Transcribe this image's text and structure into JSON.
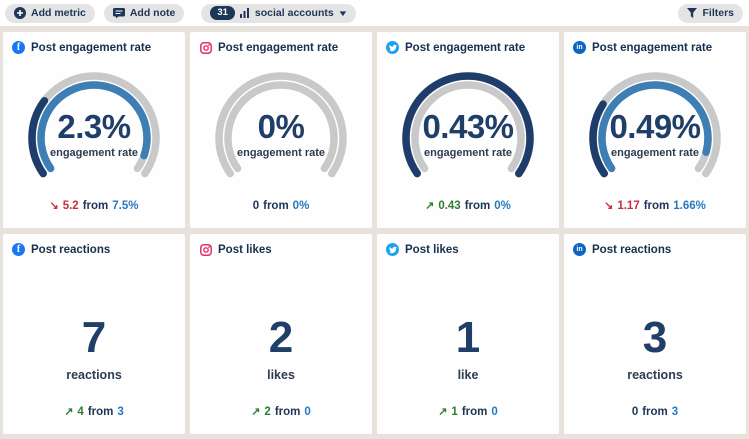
{
  "colors": {
    "track": "#c9c9c9",
    "arc_current": "#1e3d6b",
    "arc_previous": "#3d7eb5",
    "facebook": "#1877f2",
    "instagram": "#e1306c",
    "twitter": "#1da1f2",
    "linkedin": "#0a66c2",
    "positive": "#2e7d32",
    "negative": "#c5303a",
    "comparison_blue": "#2679c0"
  },
  "toolbar": {
    "add_metric": "Add metric",
    "add_note": "Add note",
    "accounts_count": "31",
    "accounts_label": "social accounts",
    "filters": "Filters"
  },
  "cards": [
    {
      "platform": "facebook",
      "title": "Post engagement rate",
      "type": "gauge",
      "value": "2.3%",
      "value_label": "engagement rate",
      "gauge": {
        "current": 2.3,
        "previous": 7.5,
        "max": 8
      },
      "delta": {
        "trend": "down",
        "glyph": "↘",
        "change": "5.2",
        "from_word": "from",
        "from": "7.5%"
      }
    },
    {
      "platform": "instagram",
      "title": "Post engagement rate",
      "type": "gauge",
      "value": "0%",
      "value_label": "engagement rate",
      "gauge": {
        "current": 0,
        "previous": 0,
        "max": 1
      },
      "delta": {
        "trend": "none",
        "glyph": "",
        "change": "0",
        "from_word": "from",
        "from": "0%"
      }
    },
    {
      "platform": "twitter",
      "title": "Post engagement rate",
      "type": "gauge",
      "value": "0.43%",
      "value_label": "engagement rate",
      "gauge": {
        "current": 0.43,
        "previous": 0,
        "max": 0.43
      },
      "delta": {
        "trend": "up",
        "glyph": "↗",
        "change": "0.43",
        "from_word": "from",
        "from": "0%"
      }
    },
    {
      "platform": "linkedin",
      "title": "Post engagement rate",
      "type": "gauge",
      "value": "0.49%",
      "value_label": "engagement rate",
      "gauge": {
        "current": 0.49,
        "previous": 1.66,
        "max": 1.8
      },
      "delta": {
        "trend": "down",
        "glyph": "↘",
        "change": "1.17",
        "from_word": "from",
        "from": "1.66%"
      }
    },
    {
      "platform": "facebook",
      "title": "Post reactions",
      "type": "number",
      "value": "7",
      "value_label": "reactions",
      "delta": {
        "trend": "up",
        "glyph": "↗",
        "change": "4",
        "from_word": "from",
        "from": "3"
      }
    },
    {
      "platform": "instagram",
      "title": "Post likes",
      "type": "number",
      "value": "2",
      "value_label": "likes",
      "delta": {
        "trend": "up",
        "glyph": "↗",
        "change": "2",
        "from_word": "from",
        "from": "0"
      }
    },
    {
      "platform": "twitter",
      "title": "Post likes",
      "type": "number",
      "value": "1",
      "value_label": "like",
      "delta": {
        "trend": "up",
        "glyph": "↗",
        "change": "1",
        "from_word": "from",
        "from": "0"
      }
    },
    {
      "platform": "linkedin",
      "title": "Post reactions",
      "type": "number",
      "value": "3",
      "value_label": "reactions",
      "delta": {
        "trend": "none",
        "glyph": "",
        "change": "0",
        "from_word": "from",
        "from": "3"
      }
    }
  ]
}
